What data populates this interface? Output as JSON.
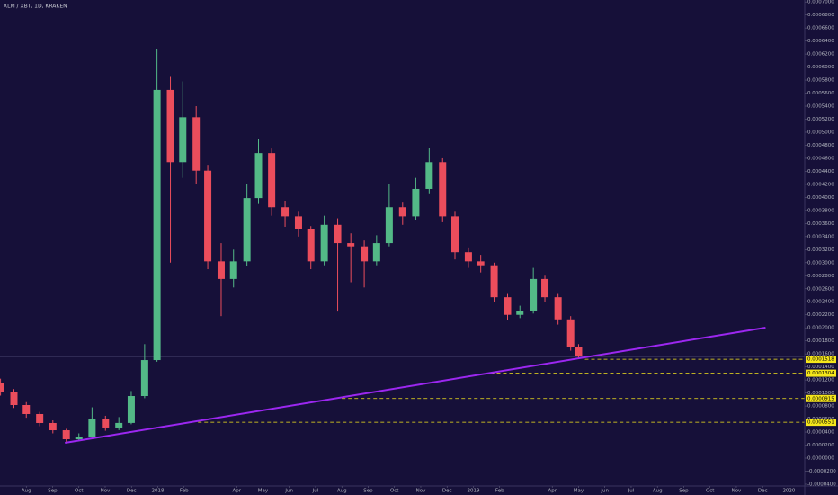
{
  "chart_data": {
    "type": "candlestick",
    "title": "XLM / XBT, 1D, KRAKEN",
    "x": [
      0.02,
      0.53,
      1,
      1.51,
      2.01,
      2.52,
      3,
      3.5,
      4.01,
      4.52,
      4.99,
      5.5,
      5.97,
      6.48,
      6.95,
      7.46,
      7.9,
      8.41,
      8.88,
      9.39,
      9.83,
      10.33,
      10.84,
      11.35,
      11.82,
      12.33,
      12.84,
      13.34,
      13.85,
      14.32,
      14.8,
      15.31,
      15.81,
      16.32,
      16.83,
      17.3,
      17.81,
      18.28,
      18.79,
      19.3,
      19.77,
      20.28,
      20.72,
      21.22,
      21.7,
      22.0
    ],
    "open": [
      0.000115,
      0.000102,
      8.15e-05,
      6.77e-05,
      5.39e-05,
      4.28e-05,
      2.9e-05,
      3.31e-05,
      6.08e-05,
      4.7e-05,
      5.4e-05,
      9.53e-05,
      0.0001505,
      0.000565,
      0.000454,
      0.000523,
      0.000441,
      0.000302,
      0.000275,
      0.000302,
      0.000399,
      0.000468,
      0.000385,
      0.000371,
      0.000351,
      0.000302,
      0.000358,
      0.00033,
      0.000325,
      0.000302,
      0.00033,
      0.000385,
      0.000371,
      0.000413,
      0.000454,
      0.000371,
      0.000316,
      0.000302,
      0.000296,
      0.000247,
      0.00022,
      0.000226,
      0.000275,
      0.000247,
      0.000213,
      0.000171
    ],
    "high": [
      0.000122,
      0.000106,
      8.6e-05,
      7.1e-05,
      5.8e-05,
      4.5e-05,
      3.8e-05,
      7.8e-05,
      6.5e-05,
      6.3e-05,
      0.000103,
      0.000175,
      0.000627,
      0.000585,
      0.000578,
      0.00054,
      0.00045,
      0.00033,
      0.00032,
      0.00042,
      0.00049,
      0.000475,
      0.000395,
      0.000378,
      0.000356,
      0.000372,
      0.000368,
      0.000345,
      0.000334,
      0.000342,
      0.00042,
      0.000392,
      0.00043,
      0.000476,
      0.00046,
      0.000378,
      0.000322,
      0.000312,
      0.0003,
      0.000252,
      0.000234,
      0.000292,
      0.00028,
      0.000252,
      0.000218,
      0.000175
    ],
    "low": [
      9.6e-05,
      7.7e-05,
      6.2e-05,
      4.9e-05,
      3.8e-05,
      2.5e-05,
      2.6e-05,
      3.1e-05,
      4.2e-05,
      4.3e-05,
      5.2e-05,
      9.2e-05,
      0.000148,
      0.0003,
      0.00043,
      0.00042,
      0.00029,
      0.000218,
      0.000262,
      0.000295,
      0.00039,
      0.000372,
      0.000355,
      0.00034,
      0.00029,
      0.000296,
      0.000225,
      0.00027,
      0.000262,
      0.000296,
      0.000325,
      0.000358,
      0.000365,
      0.000405,
      0.000362,
      0.000305,
      0.000292,
      0.000285,
      0.00024,
      0.000212,
      0.000215,
      0.000222,
      0.00024,
      0.000205,
      0.000165,
      0.000152
    ],
    "close": [
      0.000102,
      8.15e-05,
      6.77e-05,
      5.39e-05,
      4.28e-05,
      2.9e-05,
      3.31e-05,
      6.08e-05,
      4.7e-05,
      5.4e-05,
      9.53e-05,
      0.0001505,
      0.000565,
      0.000454,
      0.000523,
      0.000441,
      0.000302,
      0.000275,
      0.000302,
      0.000399,
      0.000468,
      0.000385,
      0.000371,
      0.000351,
      0.000302,
      0.000358,
      0.00033,
      0.000325,
      0.000302,
      0.00033,
      0.000385,
      0.000371,
      0.000413,
      0.000454,
      0.000371,
      0.000316,
      0.000302,
      0.000296,
      0.000247,
      0.00022,
      0.000226,
      0.000275,
      0.000247,
      0.000213,
      0.000171,
      0.000156
    ],
    "up_color": "#53b987",
    "down_color": "#eb4d5c",
    "xlim": [
      0,
      30.6
    ],
    "ylim": [
      -4.28e-05,
      0.000703
    ],
    "xticks": [
      {
        "value": 1,
        "label": "Aug"
      },
      {
        "value": 2,
        "label": "Sep"
      },
      {
        "value": 3,
        "label": "Oct"
      },
      {
        "value": 4,
        "label": "Nov"
      },
      {
        "value": 5,
        "label": "Dec"
      },
      {
        "value": 6,
        "label": "2018"
      },
      {
        "value": 7,
        "label": "Feb"
      },
      {
        "value": 9,
        "label": "Apr"
      },
      {
        "value": 10,
        "label": "May"
      },
      {
        "value": 11,
        "label": "Jun"
      },
      {
        "value": 12,
        "label": "Jul"
      },
      {
        "value": 13,
        "label": "Aug"
      },
      {
        "value": 14,
        "label": "Sep"
      },
      {
        "value": 15,
        "label": "Oct"
      },
      {
        "value": 16,
        "label": "Nov"
      },
      {
        "value": 17,
        "label": "Dec"
      },
      {
        "value": 18,
        "label": "2019"
      },
      {
        "value": 19,
        "label": "Feb"
      },
      {
        "value": 21,
        "label": "Apr"
      },
      {
        "value": 22,
        "label": "May"
      },
      {
        "value": 23,
        "label": "Jun"
      },
      {
        "value": 24,
        "label": "Jul"
      },
      {
        "value": 25,
        "label": "Aug"
      },
      {
        "value": 26,
        "label": "Sep"
      },
      {
        "value": 27,
        "label": "Oct"
      },
      {
        "value": 28,
        "label": "Nov"
      },
      {
        "value": 29,
        "label": "Dec"
      },
      {
        "value": 30,
        "label": "2020"
      }
    ],
    "yticks": [
      {
        "value": -4e-05,
        "label": "-0.0000400"
      },
      {
        "value": -2e-05,
        "label": "-0.0000200"
      },
      {
        "value": 0,
        "label": "0.0000000"
      },
      {
        "value": 2e-05,
        "label": "0.0000200"
      },
      {
        "value": 4e-05,
        "label": "0.0000400"
      },
      {
        "value": 6e-05,
        "label": "0.0000600"
      },
      {
        "value": 8e-05,
        "label": "0.0000800"
      },
      {
        "value": 0.0001,
        "label": "0.0001000"
      },
      {
        "value": 0.00012,
        "label": "0.0001200"
      },
      {
        "value": 0.00014,
        "label": "0.0001400"
      },
      {
        "value": 0.00016,
        "label": "0.0001600"
      },
      {
        "value": 0.00018,
        "label": "0.0001800"
      },
      {
        "value": 0.0002,
        "label": "0.0002000"
      },
      {
        "value": 0.00022,
        "label": "0.0002200"
      },
      {
        "value": 0.00024,
        "label": "0.0002400"
      },
      {
        "value": 0.00026,
        "label": "0.0002600"
      },
      {
        "value": 0.00028,
        "label": "0.0002800"
      },
      {
        "value": 0.0003,
        "label": "0.0003000"
      },
      {
        "value": 0.00032,
        "label": "0.0003200"
      },
      {
        "value": 0.00034,
        "label": "0.0003400"
      },
      {
        "value": 0.00036,
        "label": "0.0003600"
      },
      {
        "value": 0.00038,
        "label": "0.0003800"
      },
      {
        "value": 0.0004,
        "label": "0.0004000"
      },
      {
        "value": 0.00042,
        "label": "0.0004200"
      },
      {
        "value": 0.00044,
        "label": "0.0004400"
      },
      {
        "value": 0.00046,
        "label": "0.0004600"
      },
      {
        "value": 0.00048,
        "label": "0.0004800"
      },
      {
        "value": 0.0005,
        "label": "0.0005000"
      },
      {
        "value": 0.00052,
        "label": "0.0005200"
      },
      {
        "value": 0.00054,
        "label": "0.0005400"
      },
      {
        "value": 0.00056,
        "label": "0.0005600"
      },
      {
        "value": 0.00058,
        "label": "0.0005800"
      },
      {
        "value": 0.0006,
        "label": "0.0006000"
      },
      {
        "value": 0.00062,
        "label": "0.0006200"
      },
      {
        "value": 0.00064,
        "label": "0.0006400"
      },
      {
        "value": 0.00066,
        "label": "0.0006600"
      },
      {
        "value": 0.00068,
        "label": "0.0006800"
      },
      {
        "value": 0.0007,
        "label": "0.0007000"
      }
    ],
    "grid": false,
    "trendline": {
      "start": [
        2.47,
        2.35e-05
      ],
      "end": [
        29.11,
        0.0002003
      ],
      "color": "#9c27f0"
    },
    "levels": [
      {
        "value": 0.0001518,
        "from": 22.24
      },
      {
        "value": 0.0001304,
        "from": 18.65
      },
      {
        "value": 9.15e-05,
        "from": 13.0
      },
      {
        "value": 5.51e-05,
        "from": 7.53
      }
    ],
    "level_color": "#f5e61b"
  }
}
